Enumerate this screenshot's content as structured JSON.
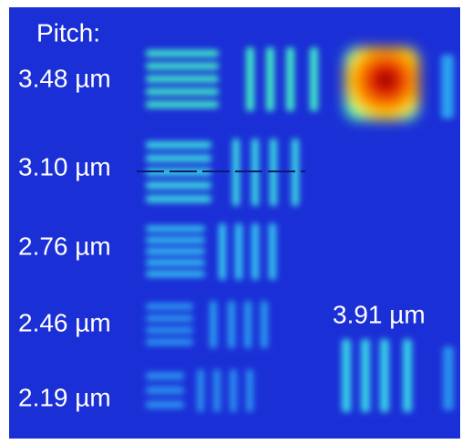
{
  "labels": {
    "pitch_heading": "Pitch:",
    "pitches": [
      "3.48 µm",
      "3.10 µm",
      "2.76 µm",
      "2.46 µm",
      "2.19 µm"
    ],
    "extra": "3.91 µm"
  }
}
